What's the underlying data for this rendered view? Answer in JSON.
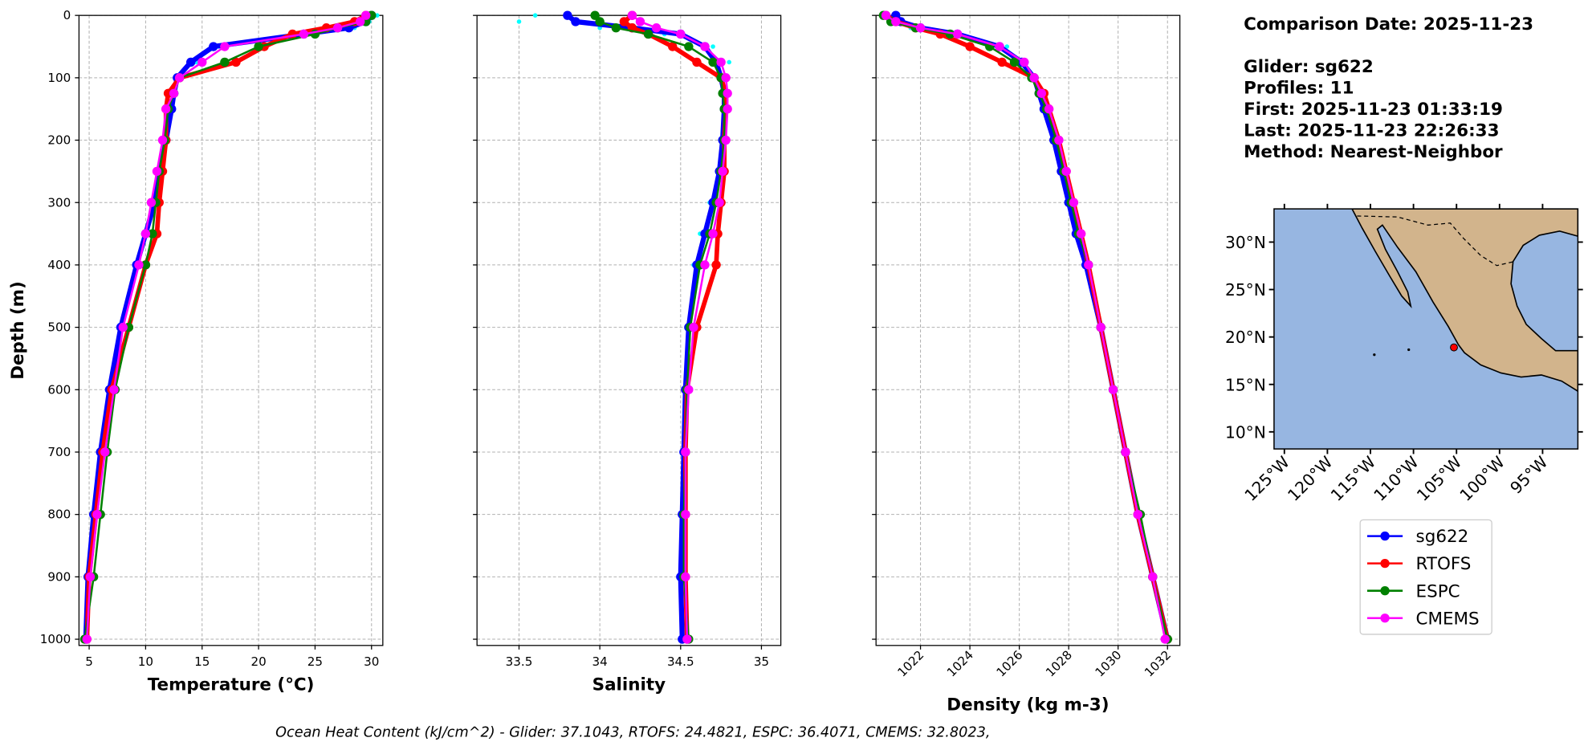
{
  "chart_data": [
    {
      "type": "line",
      "xlabel": "Temperature (°C)",
      "ylabel": "Depth (m)",
      "depth": [
        0,
        10,
        20,
        30,
        50,
        75,
        100,
        125,
        150,
        200,
        250,
        300,
        350,
        400,
        500,
        600,
        700,
        800,
        900,
        1000
      ],
      "ylim": [
        1010,
        0
      ],
      "yticks": [
        0,
        100,
        200,
        300,
        400,
        500,
        600,
        700,
        800,
        900,
        1000
      ],
      "xlim": [
        4.1,
        31
      ],
      "xticks": [
        5,
        10,
        15,
        20,
        25,
        30
      ],
      "grid": true,
      "profiles": {
        "color": "#00ffff",
        "values": [
          30.5,
          29.8,
          28.5,
          25,
          16.5,
          14.5,
          13,
          12.6,
          12.4,
          11.9,
          11.4,
          10.9,
          10.1,
          9.3,
          7.9,
          6.9,
          6.1,
          5.5,
          5.0,
          4.7
        ]
      },
      "series": [
        {
          "name": "sg622",
          "color": "#0000ff",
          "values": [
            30,
            29.5,
            28,
            24,
            16,
            14,
            12.8,
            12.5,
            12.3,
            11.8,
            11.3,
            10.8,
            10,
            9.2,
            7.8,
            6.8,
            6,
            5.4,
            4.9,
            4.7
          ]
        },
        {
          "name": "RTOFS",
          "color": "#ff0000",
          "values": [
            29.5,
            28.5,
            26,
            23,
            20.5,
            18,
            13,
            12,
            11.8,
            11.8,
            11.5,
            11.2,
            11,
            10,
            8.5,
            7,
            6.2,
            5.6,
            5,
            4.8
          ]
        },
        {
          "name": "ESPC",
          "color": "#008000",
          "values": [
            30,
            29.5,
            27,
            25,
            20,
            17,
            13,
            12.5,
            12,
            11.7,
            11.2,
            10.9,
            10.6,
            10,
            8.5,
            7.3,
            6.6,
            6,
            5.4,
            4.6
          ]
        },
        {
          "name": "CMEMS",
          "color": "#ff00ff",
          "values": [
            29.5,
            29,
            27,
            24,
            17,
            15,
            13,
            12.5,
            11.8,
            11.5,
            11,
            10.5,
            10,
            9.4,
            8,
            7.2,
            6.4,
            5.7,
            5.1,
            4.8
          ]
        }
      ]
    },
    {
      "type": "line",
      "xlabel": "Salinity",
      "sharey": true,
      "depth": [
        0,
        10,
        20,
        30,
        50,
        75,
        100,
        125,
        150,
        200,
        250,
        300,
        350,
        400,
        500,
        600,
        700,
        800,
        900,
        1000
      ],
      "xlim": [
        33.24,
        35.12
      ],
      "xticks": [
        33.5,
        34.0,
        34.5,
        35.0
      ],
      "grid": true,
      "profiles": {
        "color": "#00ffff",
        "values": [
          33.6,
          33.5,
          34.0,
          34.4,
          34.7,
          34.8,
          34.78,
          34.78,
          34.77,
          34.76,
          34.74,
          34.68,
          34.62,
          34.58,
          34.54,
          34.52,
          34.51,
          34.5,
          34.49,
          34.5
        ]
      },
      "series": [
        {
          "name": "sg622",
          "color": "#0000ff",
          "values": [
            33.8,
            33.85,
            34.2,
            34.5,
            34.65,
            34.72,
            34.75,
            34.77,
            34.77,
            34.76,
            34.74,
            34.7,
            34.65,
            34.6,
            34.55,
            34.53,
            34.52,
            34.51,
            34.5,
            34.51
          ]
        },
        {
          "name": "RTOFS",
          "color": "#ff0000",
          "values": [
            34.2,
            34.15,
            34.2,
            34.3,
            34.45,
            34.6,
            34.75,
            34.78,
            34.78,
            34.77,
            34.77,
            34.75,
            34.73,
            34.72,
            34.6,
            34.54,
            34.53,
            34.53,
            34.53,
            34.54
          ]
        },
        {
          "name": "ESPC",
          "color": "#008000",
          "values": [
            33.97,
            34.0,
            34.1,
            34.3,
            34.55,
            34.7,
            34.75,
            34.76,
            34.77,
            34.77,
            34.75,
            34.72,
            34.68,
            34.62,
            34.56,
            34.54,
            34.53,
            34.52,
            34.52,
            34.55
          ]
        },
        {
          "name": "CMEMS",
          "color": "#ff00ff",
          "values": [
            34.2,
            34.25,
            34.35,
            34.5,
            34.65,
            34.75,
            34.78,
            34.79,
            34.79,
            34.78,
            34.76,
            34.74,
            34.7,
            34.65,
            34.58,
            34.55,
            34.53,
            34.53,
            34.53,
            34.54
          ]
        }
      ]
    },
    {
      "type": "line",
      "xlabel": "Density (kg m-3)",
      "sharey": true,
      "xtick_rotation": 45,
      "depth": [
        0,
        10,
        20,
        30,
        50,
        75,
        100,
        125,
        150,
        200,
        250,
        300,
        350,
        400,
        500,
        600,
        700,
        800,
        900,
        1000
      ],
      "xlim": [
        1020.2,
        1032.5
      ],
      "xticks": [
        1022,
        1024,
        1026,
        1028,
        1030,
        1032
      ],
      "grid": true,
      "profiles": {
        "color": "#00ffff",
        "values": [
          1020.7,
          1020.9,
          1021.6,
          1023.6,
          1025.5,
          1026.3,
          1026.7,
          1026.9,
          1027.1,
          1027.4,
          1027.7,
          1028.0,
          1028.3,
          1028.6,
          1029.2,
          1029.7,
          1030.2,
          1030.8,
          1031.3,
          1031.9
        ]
      },
      "series": [
        {
          "name": "sg622",
          "color": "#0000ff",
          "values": [
            1021.0,
            1021.2,
            1022,
            1023.5,
            1025.2,
            1026.1,
            1026.6,
            1026.8,
            1027.0,
            1027.4,
            1027.7,
            1028.0,
            1028.3,
            1028.7,
            1029.3,
            1029.8,
            1030.3,
            1030.8,
            1031.4,
            1032.0
          ]
        },
        {
          "name": "RTOFS",
          "color": "#ff0000",
          "values": [
            1020.6,
            1021,
            1021.8,
            1022.8,
            1024,
            1025.3,
            1026.6,
            1027.0,
            1027.2,
            1027.6,
            1027.9,
            1028.2,
            1028.5,
            1028.8,
            1029.3,
            1029.8,
            1030.3,
            1030.8,
            1031.4,
            1032.0
          ]
        },
        {
          "name": "ESPC",
          "color": "#008000",
          "values": [
            1020.5,
            1020.8,
            1021.8,
            1023.2,
            1024.8,
            1025.8,
            1026.5,
            1026.8,
            1027.1,
            1027.5,
            1027.8,
            1028.1,
            1028.4,
            1028.8,
            1029.3,
            1029.8,
            1030.3,
            1030.9,
            1031.4,
            1032.0
          ]
        },
        {
          "name": "CMEMS",
          "color": "#ff00ff",
          "values": [
            1020.6,
            1021.0,
            1022,
            1023.5,
            1025.2,
            1026.2,
            1026.6,
            1026.9,
            1027.2,
            1027.6,
            1027.9,
            1028.2,
            1028.5,
            1028.8,
            1029.3,
            1029.8,
            1030.3,
            1030.8,
            1031.4,
            1031.9
          ]
        }
      ]
    },
    {
      "type": "map",
      "xlim": [
        -126.2,
        -90.9
      ],
      "ylim": [
        8.2,
        33.5
      ],
      "xticks": [
        {
          "value": -125,
          "label": "125°W"
        },
        {
          "value": -120,
          "label": "120°W"
        },
        {
          "value": -115,
          "label": "115°W"
        },
        {
          "value": -110,
          "label": "110°W"
        },
        {
          "value": -105,
          "label": "105°W"
        },
        {
          "value": -100,
          "label": "100°W"
        },
        {
          "value": -95,
          "label": "95°W"
        }
      ],
      "yticks": [
        {
          "value": 10,
          "label": "10°N"
        },
        {
          "value": 15,
          "label": "15°N"
        },
        {
          "value": 20,
          "label": "20°N"
        },
        {
          "value": 25,
          "label": "25°N"
        },
        {
          "value": 30,
          "label": "30°N"
        }
      ],
      "ocean_color": "#97b6e1",
      "land_color": "#d2b48c",
      "marker": {
        "lon": -105.3,
        "lat": 18.9,
        "color": "#ff0000"
      }
    }
  ],
  "info": {
    "title": "Comparison Date: 2025-11-23",
    "lines": [
      "Glider: sg622",
      "Profiles: 11",
      "First: 2025-11-23 01:33:19",
      "Last: 2025-11-23 22:26:33",
      "Method: Nearest-Neighbor"
    ]
  },
  "footer": "Ocean Heat Content (kJ/cm^2) - Glider: 37.1043,  RTOFS: 24.4821,  ESPC: 36.4071,  CMEMS: 32.8023,"
}
